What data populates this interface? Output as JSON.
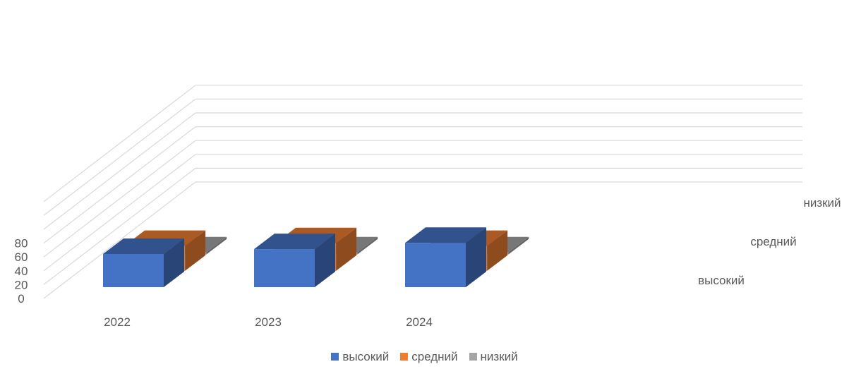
{
  "chart_data": {
    "type": "bar",
    "subtype": "3d-column",
    "categories": [
      "2022",
      "2023",
      "2024"
    ],
    "series": [
      {
        "name": "высокий",
        "color": "#4472C4",
        "values": [
          48,
          55,
          64
        ]
      },
      {
        "name": "средний",
        "color": "#ED7D31",
        "values": [
          36,
          40,
          36
        ]
      },
      {
        "name": "низкий",
        "color": "#A5A5A5",
        "values": [
          2,
          1,
          0
        ]
      }
    ],
    "y_ticks": [
      "0",
      "20",
      "40",
      "60",
      "80"
    ],
    "ylim": [
      0,
      140
    ],
    "grid": true,
    "legend_position": "bottom"
  }
}
